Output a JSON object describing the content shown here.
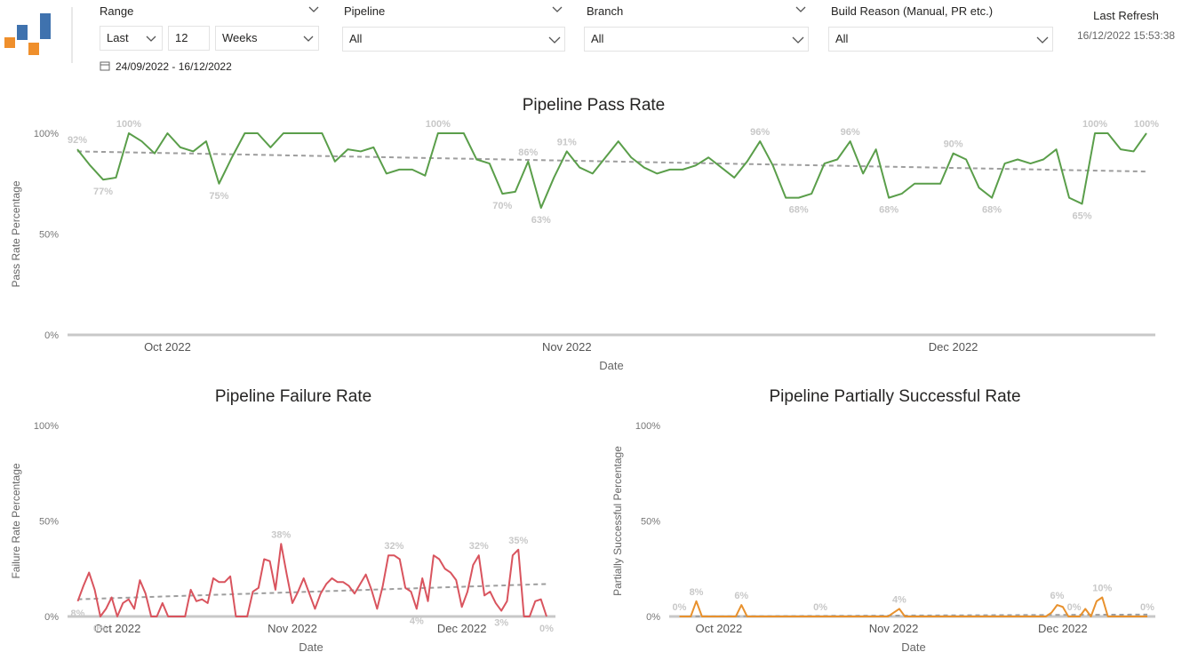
{
  "header": {
    "filters": [
      {
        "label": "Range",
        "controls": [
          "Last",
          "12",
          "Weeks"
        ]
      },
      {
        "label": "Pipeline",
        "value": "All"
      },
      {
        "label": "Branch",
        "value": "All"
      },
      {
        "label": "Build Reason (Manual, PR etc.)",
        "value": "All"
      }
    ],
    "date_range": "24/09/2022 - 16/12/2022",
    "last_refresh": {
      "label": "Last Refresh",
      "value": "16/12/2022 15:53:38"
    }
  },
  "chart_data": [
    {
      "type": "line",
      "title": "Pipeline Pass Rate",
      "x_label": "Date",
      "y_label": "Pass Rate Percentage",
      "color": "#5a9e4a",
      "categories": [
        null,
        null,
        null,
        null,
        null,
        null,
        null,
        "Oct 2022",
        null,
        null,
        null,
        null,
        null,
        null,
        null,
        null,
        null,
        null,
        null,
        null,
        null,
        null,
        null,
        null,
        null,
        null,
        null,
        null,
        null,
        null,
        null,
        null,
        null,
        null,
        null,
        null,
        null,
        null,
        "Nov 2022",
        null,
        null,
        null,
        null,
        null,
        null,
        null,
        null,
        null,
        null,
        null,
        null,
        null,
        null,
        null,
        null,
        null,
        null,
        null,
        null,
        null,
        null,
        null,
        null,
        null,
        null,
        null,
        null,
        null,
        "Dec 2022",
        null,
        null,
        null,
        null,
        null,
        null,
        null,
        null,
        null,
        null,
        null,
        null,
        null,
        null,
        null
      ],
      "values": [
        92,
        84,
        77,
        78,
        100,
        96,
        90,
        100,
        93,
        91,
        96,
        75,
        88,
        100,
        100,
        93,
        100,
        100,
        100,
        100,
        86,
        92,
        91,
        93,
        80,
        82,
        82,
        79,
        100,
        100,
        100,
        87,
        85,
        70,
        71,
        86,
        63,
        78,
        91,
        83,
        80,
        88,
        96,
        88,
        83,
        80,
        82,
        82,
        84,
        88,
        83,
        78,
        86,
        96,
        84,
        68,
        68,
        70,
        85,
        87,
        96,
        80,
        92,
        68,
        70,
        75,
        75,
        75,
        90,
        87,
        73,
        68,
        85,
        87,
        85,
        87,
        92,
        68,
        65,
        100,
        100,
        92,
        91,
        100
      ],
      "value_labels": [
        "92%",
        null,
        "77%",
        null,
        "100%",
        null,
        null,
        null,
        null,
        null,
        null,
        "75%",
        null,
        null,
        null,
        null,
        null,
        null,
        null,
        null,
        null,
        null,
        null,
        null,
        null,
        null,
        null,
        null,
        "100%",
        null,
        null,
        null,
        null,
        "70%",
        null,
        "86%",
        "63%",
        null,
        "91%",
        null,
        null,
        null,
        null,
        null,
        null,
        null,
        null,
        null,
        null,
        null,
        null,
        null,
        null,
        "96%",
        null,
        null,
        "68%",
        null,
        null,
        null,
        "96%",
        null,
        null,
        "68%",
        null,
        null,
        null,
        null,
        "90%",
        null,
        null,
        "68%",
        null,
        null,
        null,
        null,
        null,
        null,
        "65%",
        "100%",
        null,
        null,
        null,
        "100%"
      ],
      "trend": {
        "color": "#9e9e9e",
        "values": [
          91,
          81
        ]
      },
      "ylim": [
        0,
        100
      ],
      "yticks": [
        {
          "value": 0,
          "label": "0%"
        },
        {
          "value": 50,
          "label": "50%"
        },
        {
          "value": 100,
          "label": "100%"
        }
      ]
    },
    {
      "type": "line",
      "title": "Pipeline Failure Rate",
      "x_label": "Date",
      "y_label": "Failure Rate Percentage",
      "color": "#d9545e",
      "categories": [
        null,
        null,
        null,
        null,
        null,
        null,
        null,
        "Oct 2022",
        null,
        null,
        null,
        null,
        null,
        null,
        null,
        null,
        null,
        null,
        null,
        null,
        null,
        null,
        null,
        null,
        null,
        null,
        null,
        null,
        null,
        null,
        null,
        null,
        null,
        null,
        null,
        null,
        null,
        null,
        "Nov 2022",
        null,
        null,
        null,
        null,
        null,
        null,
        null,
        null,
        null,
        null,
        null,
        null,
        null,
        null,
        null,
        null,
        null,
        null,
        null,
        null,
        null,
        null,
        null,
        null,
        null,
        null,
        null,
        null,
        null,
        "Dec 2022",
        null,
        null,
        null,
        null,
        null,
        null,
        null,
        null,
        null,
        null,
        null,
        null,
        null,
        null,
        null
      ],
      "values": [
        8,
        16,
        23,
        14,
        0,
        4,
        10,
        0,
        7,
        9,
        4,
        19,
        12,
        0,
        0,
        7,
        0,
        0,
        0,
        0,
        14,
        8,
        9,
        7,
        20,
        18,
        18,
        21,
        0,
        0,
        0,
        13,
        15,
        30,
        29,
        14,
        38,
        22,
        7,
        13,
        20,
        12,
        4,
        12,
        17,
        20,
        18,
        18,
        16,
        12,
        17,
        22,
        14,
        4,
        16,
        32,
        32,
        30,
        15,
        13,
        4,
        20,
        8,
        32,
        30,
        25,
        23,
        19,
        5,
        13,
        27,
        32,
        11,
        13,
        7,
        3,
        8,
        32,
        35,
        0,
        0,
        8,
        9,
        0
      ],
      "value_labels": [
        "8%",
        null,
        null,
        null,
        "0%",
        null,
        null,
        null,
        null,
        null,
        null,
        null,
        null,
        null,
        null,
        null,
        null,
        null,
        null,
        null,
        null,
        null,
        null,
        null,
        null,
        null,
        null,
        null,
        null,
        null,
        null,
        null,
        null,
        null,
        null,
        null,
        "38%",
        null,
        null,
        null,
        null,
        null,
        null,
        null,
        null,
        null,
        null,
        null,
        null,
        null,
        null,
        null,
        null,
        null,
        null,
        null,
        "32%",
        null,
        null,
        null,
        "4%",
        null,
        null,
        null,
        null,
        null,
        null,
        null,
        null,
        null,
        null,
        "32%",
        null,
        null,
        null,
        "3%",
        null,
        null,
        "35%",
        null,
        null,
        null,
        null,
        "0%"
      ],
      "trend": {
        "color": "#9e9e9e",
        "values": [
          9,
          17
        ]
      },
      "ylim": [
        0,
        100
      ],
      "yticks": [
        {
          "value": 0,
          "label": "0%"
        },
        {
          "value": 50,
          "label": "50%"
        },
        {
          "value": 100,
          "label": "100%"
        }
      ]
    },
    {
      "type": "line",
      "title": "Pipeline Partially Successful Rate",
      "x_label": "Date",
      "y_label": "Partially Successful Percentage",
      "color": "#e8912d",
      "categories": [
        null,
        null,
        null,
        null,
        null,
        null,
        null,
        "Oct 2022",
        null,
        null,
        null,
        null,
        null,
        null,
        null,
        null,
        null,
        null,
        null,
        null,
        null,
        null,
        null,
        null,
        null,
        null,
        null,
        null,
        null,
        null,
        null,
        null,
        null,
        null,
        null,
        null,
        null,
        null,
        "Nov 2022",
        null,
        null,
        null,
        null,
        null,
        null,
        null,
        null,
        null,
        null,
        null,
        null,
        null,
        null,
        null,
        null,
        null,
        null,
        null,
        null,
        null,
        null,
        null,
        null,
        null,
        null,
        null,
        null,
        null,
        "Dec 2022",
        null,
        null,
        null,
        null,
        null,
        null,
        null,
        null,
        null,
        null,
        null,
        null,
        null,
        null,
        null
      ],
      "values": [
        0,
        0,
        0,
        8,
        0,
        0,
        0,
        0,
        0,
        0,
        0,
        6,
        0,
        0,
        0,
        0,
        0,
        0,
        0,
        0,
        0,
        0,
        0,
        0,
        0,
        0,
        0,
        0,
        0,
        0,
        0,
        0,
        0,
        0,
        0,
        0,
        0,
        0,
        2,
        4,
        0,
        0,
        0,
        0,
        0,
        0,
        0,
        0,
        0,
        0,
        0,
        0,
        0,
        0,
        0,
        0,
        0,
        0,
        0,
        0,
        0,
        0,
        0,
        0,
        0,
        0,
        2,
        6,
        5,
        0,
        0,
        0,
        4,
        0,
        8,
        10,
        0,
        0,
        0,
        0,
        0,
        0,
        0,
        0
      ],
      "value_labels": [
        "0%",
        null,
        null,
        "8%",
        null,
        null,
        null,
        null,
        null,
        null,
        null,
        "6%",
        null,
        null,
        null,
        null,
        null,
        null,
        null,
        null,
        null,
        null,
        null,
        null,
        null,
        "0%",
        null,
        null,
        null,
        null,
        null,
        null,
        null,
        null,
        null,
        null,
        null,
        null,
        null,
        "4%",
        null,
        null,
        null,
        null,
        null,
        null,
        null,
        null,
        null,
        null,
        null,
        null,
        null,
        null,
        null,
        null,
        null,
        null,
        null,
        null,
        null,
        null,
        null,
        null,
        null,
        null,
        null,
        "6%",
        null,
        null,
        "0%",
        null,
        null,
        null,
        null,
        "10%",
        null,
        null,
        null,
        null,
        null,
        null,
        null,
        "0%"
      ],
      "trend": {
        "color": "#9e9e9e",
        "values": [
          0,
          1
        ]
      },
      "ylim": [
        0,
        100
      ],
      "yticks": [
        {
          "value": 0,
          "label": "0%"
        },
        {
          "value": 50,
          "label": "50%"
        },
        {
          "value": 100,
          "label": "100%"
        }
      ]
    }
  ]
}
